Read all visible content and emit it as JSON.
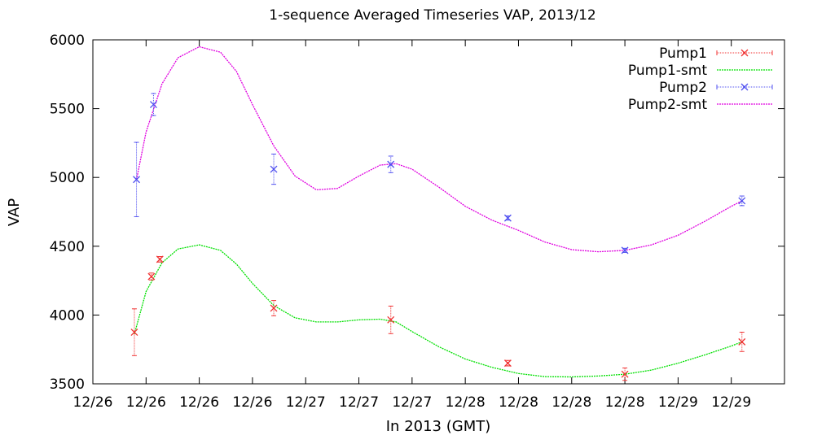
{
  "chart_data": {
    "type": "line",
    "title": "1-sequence Averaged Timeseries VAP, 2013/12",
    "xlabel": "In 2013 (GMT)",
    "ylabel": "VAP",
    "ylim": [
      3500,
      6000
    ],
    "yticks": [
      3500,
      4000,
      4500,
      5000,
      5500,
      6000
    ],
    "xlim": [
      0,
      13
    ],
    "xtick_labels": [
      "12/26",
      "12/26",
      "12/26",
      "12/26",
      "12/27",
      "12/27",
      "12/27",
      "12/28",
      "12/28",
      "12/28",
      "12/28",
      "12/29",
      "12/29"
    ],
    "grid": false,
    "legend_position": "top-right",
    "series": [
      {
        "name": "Pump1",
        "style": "points-errorbars",
        "color": "#f03232",
        "x": [
          0.78,
          1.1,
          1.26,
          3.4,
          5.6,
          7.8,
          10.0,
          12.2
        ],
        "y": [
          3875,
          4280,
          4405,
          4050,
          3965,
          3650,
          3570,
          3805
        ],
        "err": [
          170,
          25,
          20,
          55,
          100,
          20,
          45,
          70
        ]
      },
      {
        "name": "Pump1-smt",
        "style": "line",
        "color": "#00e000",
        "x": [
          0.78,
          1.0,
          1.3,
          1.6,
          2.0,
          2.4,
          2.7,
          3.0,
          3.4,
          3.8,
          4.2,
          4.6,
          5.0,
          5.4,
          5.7,
          6.0,
          6.5,
          7.0,
          7.5,
          8.0,
          8.5,
          9.0,
          9.5,
          10.0,
          10.5,
          11.0,
          11.5,
          12.0,
          12.2
        ],
        "y": [
          3860,
          4170,
          4380,
          4480,
          4510,
          4470,
          4370,
          4230,
          4070,
          3980,
          3950,
          3950,
          3965,
          3970,
          3950,
          3880,
          3770,
          3680,
          3620,
          3575,
          3552,
          3550,
          3557,
          3570,
          3600,
          3650,
          3710,
          3775,
          3805
        ]
      },
      {
        "name": "Pump2",
        "style": "points-errorbars",
        "color": "#5050f0",
        "x": [
          0.82,
          1.14,
          3.4,
          5.6,
          7.8,
          10.0,
          12.2
        ],
        "y": [
          4985,
          5530,
          5060,
          5095,
          4705,
          4470,
          4830
        ],
        "err": [
          270,
          80,
          110,
          60,
          15,
          15,
          35
        ]
      },
      {
        "name": "Pump2-smt",
        "style": "line",
        "color": "#e000e0",
        "x": [
          0.82,
          1.0,
          1.3,
          1.6,
          2.0,
          2.4,
          2.7,
          3.0,
          3.4,
          3.8,
          4.2,
          4.6,
          5.0,
          5.4,
          5.7,
          6.0,
          6.5,
          7.0,
          7.5,
          8.0,
          8.5,
          9.0,
          9.5,
          10.0,
          10.5,
          11.0,
          11.5,
          12.0,
          12.2
        ],
        "y": [
          4985,
          5330,
          5680,
          5870,
          5950,
          5910,
          5770,
          5530,
          5230,
          5010,
          4910,
          4920,
          5010,
          5090,
          5100,
          5060,
          4930,
          4790,
          4690,
          4615,
          4530,
          4475,
          4460,
          4470,
          4510,
          4580,
          4680,
          4790,
          4830
        ]
      }
    ]
  }
}
